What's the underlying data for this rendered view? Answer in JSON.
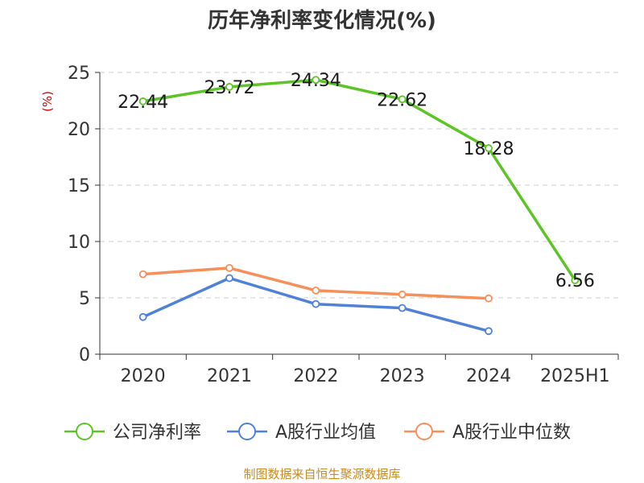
{
  "chart_data": {
    "type": "line",
    "title": "历年净利率变化情况(%)",
    "ylabel": "(%)",
    "xlabel": "",
    "categories": [
      "2020",
      "2021",
      "2022",
      "2023",
      "2024",
      "2025H1"
    ],
    "yticks": [
      "0",
      "5",
      "10",
      "15",
      "20",
      "25"
    ],
    "ylim": [
      0,
      25
    ],
    "grid": true,
    "legend_position": "bottom",
    "series": [
      {
        "name": "公司净利率",
        "color": "#5cc424",
        "values": [
          22.44,
          23.72,
          24.34,
          22.62,
          18.28,
          6.56
        ],
        "labels": [
          "22.44",
          "23.72",
          "24.34",
          "22.62",
          "18.28",
          "6.56"
        ]
      },
      {
        "name": "A股行业均值",
        "color": "#4f81d9",
        "values": [
          3.3,
          6.75,
          4.45,
          4.1,
          2.05,
          null
        ]
      },
      {
        "name": "A股行业中位数",
        "color": "#f68f5a",
        "values": [
          7.1,
          7.65,
          5.65,
          5.3,
          4.95,
          null
        ]
      }
    ]
  },
  "source": "制图数据来自恒生聚源数据库"
}
